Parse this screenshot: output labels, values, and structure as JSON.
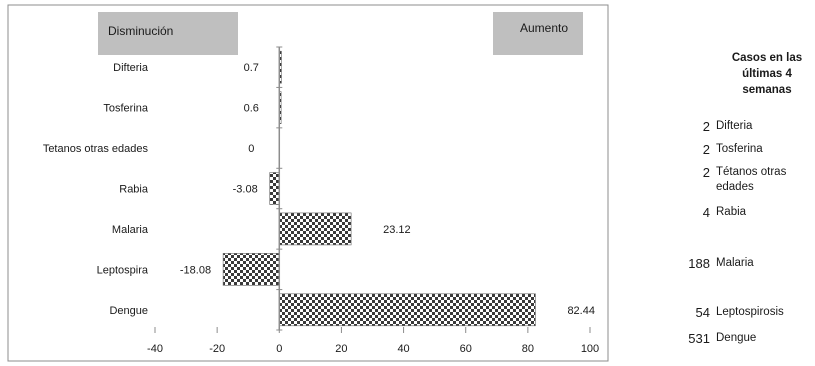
{
  "chart_data": {
    "type": "bar",
    "orientation": "horizontal",
    "categories": [
      "Difteria",
      "Tosferina",
      "Tetanos otras edades",
      "Rabia",
      "Malaria",
      "Leptospira",
      "Dengue"
    ],
    "values": [
      0.7,
      0.6,
      0,
      -3.08,
      23.12,
      -18.08,
      82.44
    ],
    "data_labels": [
      "0.7",
      "0.6",
      "0",
      "-3.08",
      "23.12",
      "-18.08",
      "82.44"
    ],
    "xlim": [
      -40,
      100
    ],
    "x_ticks": [
      "-40",
      "-20",
      "0",
      "20",
      "40",
      "60",
      "80",
      "100"
    ],
    "x_tick_values": [
      -40,
      -20,
      0,
      20,
      40,
      60,
      80,
      100
    ],
    "header_left": "Disminución",
    "header_right": "Aumento",
    "grid": false,
    "bar_fill": "checkered-black-white"
  },
  "cases_panel": {
    "title": "Casos en las últimas 4 semanas",
    "rows": [
      {
        "count": "2",
        "label": "Difteria"
      },
      {
        "count": "2",
        "label": "Tosferina"
      },
      {
        "count": "2",
        "label": "Tétanos otras edades"
      },
      {
        "count": "4",
        "label": "Rabia"
      },
      {
        "count": "188",
        "label": "Malaria"
      },
      {
        "count": "54",
        "label": "Leptospirosis"
      },
      {
        "count": "531",
        "label": "Dengue"
      }
    ]
  },
  "colors": {
    "header_box": "#bfbfbf",
    "bar_dark": "#3a3a3a",
    "bar_light": "#ffffff",
    "axis": "#8c8c8c",
    "frame": "#8c8c8c"
  }
}
